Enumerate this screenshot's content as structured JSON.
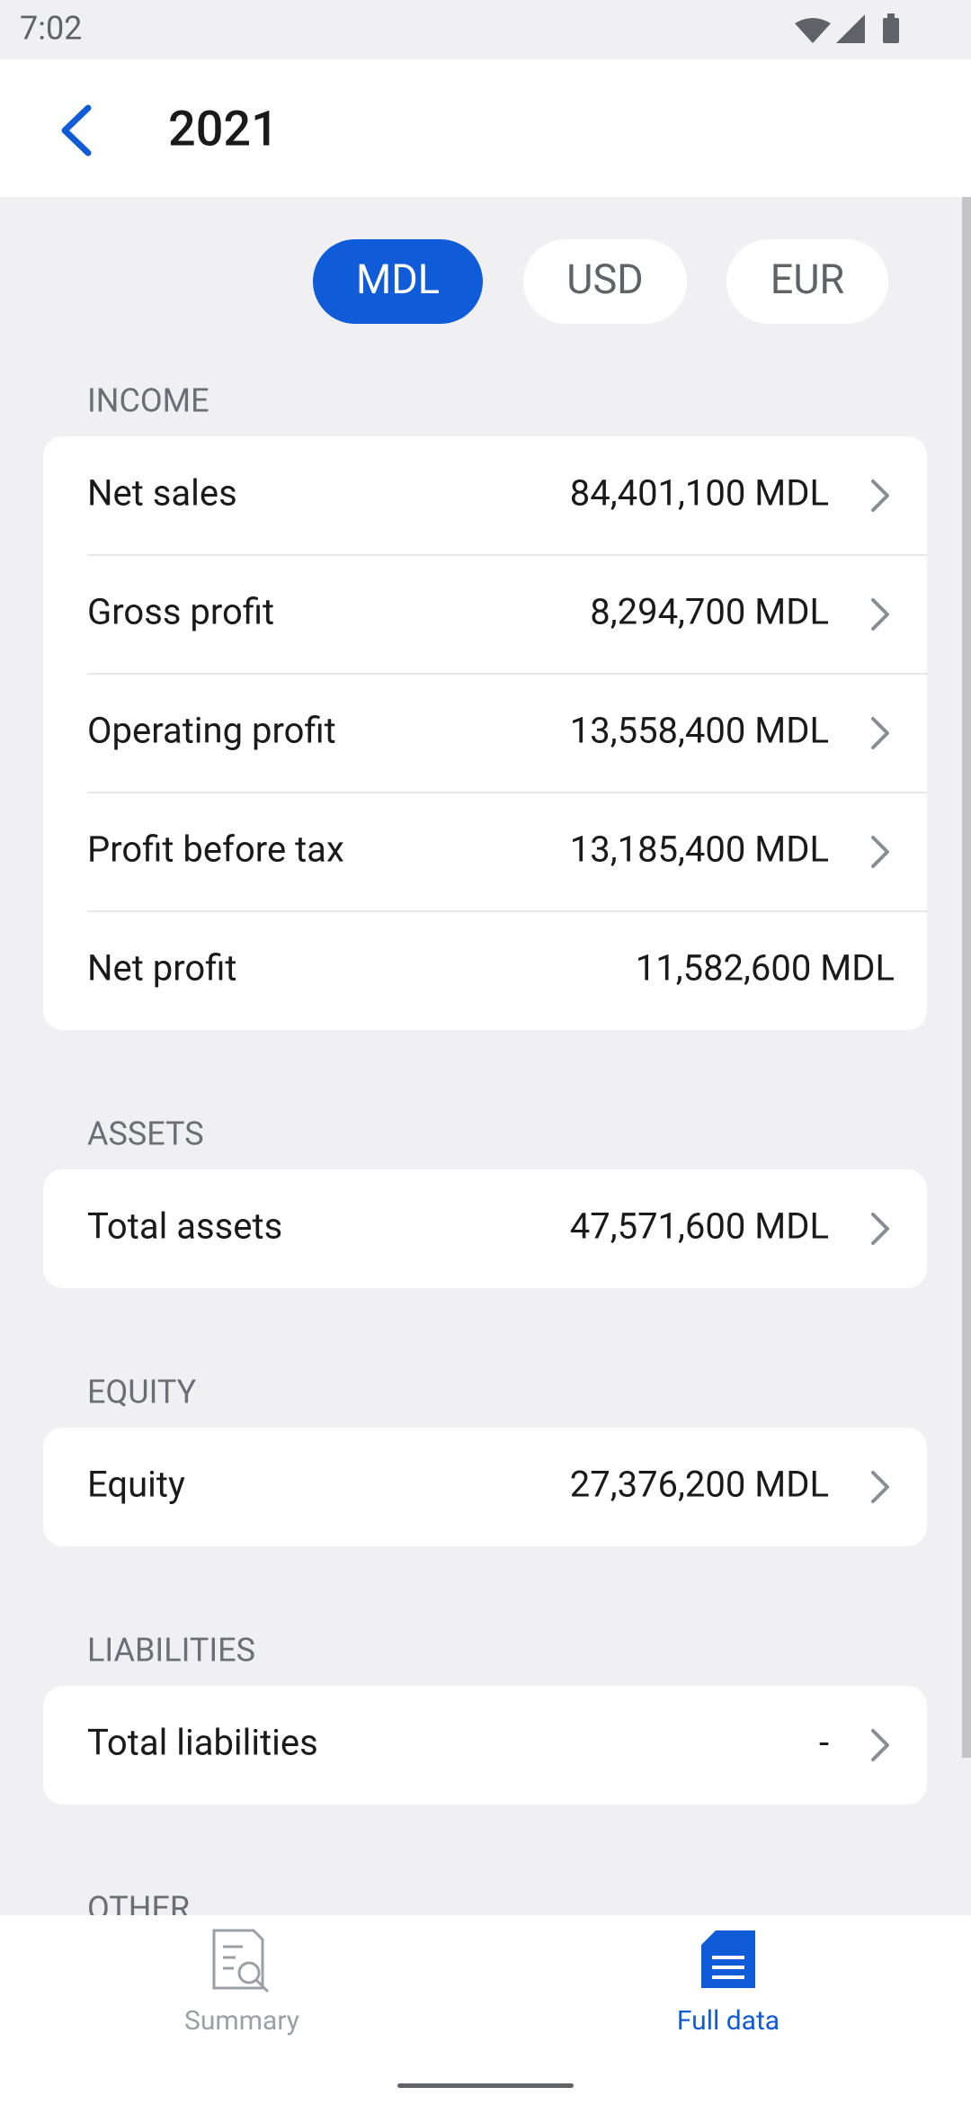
{
  "status": {
    "time": "7:02"
  },
  "header": {
    "title": "2021"
  },
  "currencies": {
    "options": [
      "MDL",
      "USD",
      "EUR"
    ],
    "selected": 0
  },
  "sections": [
    {
      "title": "INCOME",
      "rows": [
        {
          "label": "Net sales",
          "value": "84,401,100 MDL",
          "arrow": true
        },
        {
          "label": "Gross profit",
          "value": "8,294,700 MDL",
          "arrow": true
        },
        {
          "label": "Operating profit",
          "value": "13,558,400 MDL",
          "arrow": true
        },
        {
          "label": "Profit before tax",
          "value": "13,185,400 MDL",
          "arrow": true
        },
        {
          "label": "Net profit",
          "value": "11,582,600 MDL",
          "arrow": false
        }
      ]
    },
    {
      "title": "ASSETS",
      "rows": [
        {
          "label": "Total assets",
          "value": "47,571,600 MDL",
          "arrow": true
        }
      ]
    },
    {
      "title": "EQUITY",
      "rows": [
        {
          "label": "Equity",
          "value": "27,376,200 MDL",
          "arrow": true
        }
      ]
    },
    {
      "title": "LIABILITIES",
      "rows": [
        {
          "label": "Total liabilities",
          "value": "-",
          "arrow": true
        }
      ]
    },
    {
      "title": "OTHER",
      "rows": []
    }
  ],
  "nav": {
    "items": [
      "Summary",
      "Full data"
    ],
    "active": 1
  }
}
